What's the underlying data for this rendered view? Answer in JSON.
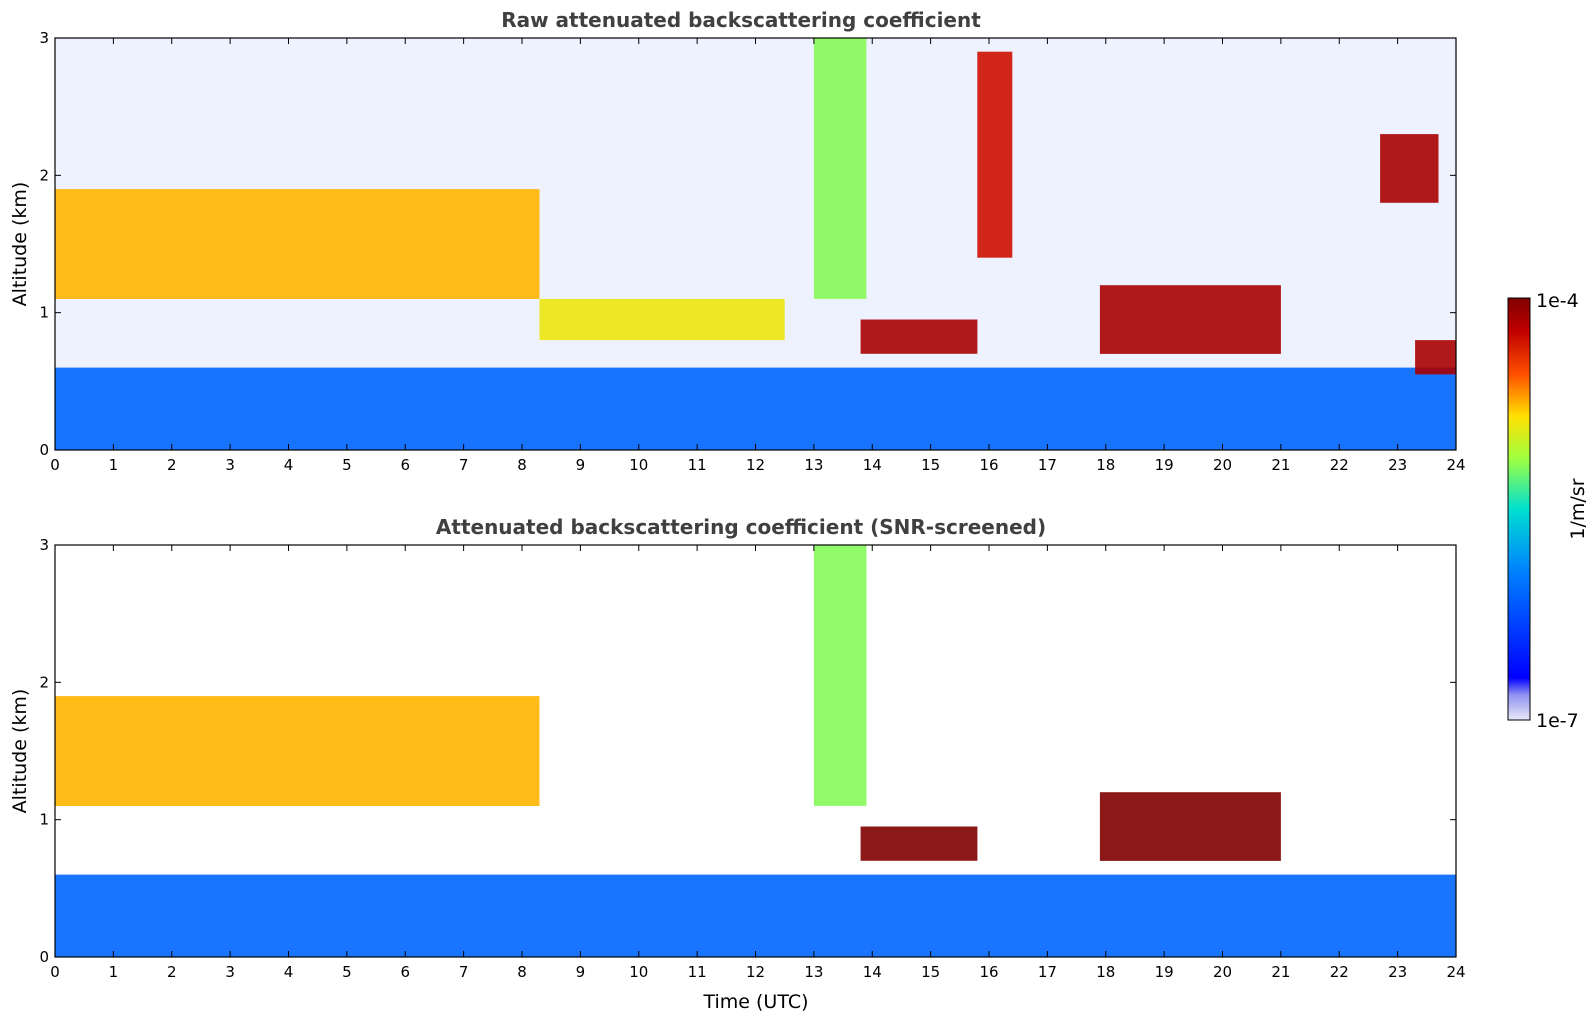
{
  "chart_data": [
    {
      "type": "heatmap",
      "title": "Raw attenuated backscattering coefficient",
      "xlabel": "",
      "ylabel": "Altitude (km)",
      "xlim": [
        0,
        24
      ],
      "ylim": [
        0,
        3
      ],
      "x_ticks": [
        "0",
        "1",
        "2",
        "3",
        "4",
        "5",
        "6",
        "7",
        "8",
        "9",
        "10",
        "11",
        "12",
        "13",
        "14",
        "15",
        "16",
        "17",
        "18",
        "19",
        "20",
        "21",
        "22",
        "23",
        "24"
      ],
      "y_ticks": [
        "0",
        "1",
        "2",
        "3"
      ],
      "features": [
        {
          "t_start": 0,
          "t_end": 24,
          "alt_bottom": 0,
          "alt_top": 0.6,
          "level": 0.3
        },
        {
          "t_start": 0,
          "t_end": 8.3,
          "alt_bottom": 1.1,
          "alt_top": 1.9,
          "level": 0.75
        },
        {
          "t_start": 8.3,
          "t_end": 12.5,
          "alt_bottom": 0.8,
          "alt_top": 1.1,
          "level": 0.7
        },
        {
          "t_start": 13,
          "t_end": 13.9,
          "alt_bottom": 1.1,
          "alt_top": 3.0,
          "level": 0.6
        },
        {
          "t_start": 13.8,
          "t_end": 15.8,
          "alt_bottom": 0.7,
          "alt_top": 0.95,
          "level": 0.95
        },
        {
          "t_start": 15.8,
          "t_end": 16.4,
          "alt_bottom": 1.4,
          "alt_top": 2.9,
          "level": 0.9
        },
        {
          "t_start": 17.9,
          "t_end": 21.0,
          "alt_bottom": 0.7,
          "alt_top": 1.2,
          "level": 0.95
        },
        {
          "t_start": 22.7,
          "t_end": 23.7,
          "alt_bottom": 1.8,
          "alt_top": 2.3,
          "level": 0.95
        },
        {
          "t_start": 23.3,
          "t_end": 24,
          "alt_bottom": 0.55,
          "alt_top": 0.8,
          "level": 0.95
        }
      ]
    },
    {
      "type": "heatmap",
      "title": "Attenuated backscattering coefficient (SNR-screened)",
      "xlabel": "Time (UTC)",
      "ylabel": "Altitude (km)",
      "xlim": [
        0,
        24
      ],
      "ylim": [
        0,
        3
      ],
      "x_ticks": [
        "0",
        "1",
        "2",
        "3",
        "4",
        "5",
        "6",
        "7",
        "8",
        "9",
        "10",
        "11",
        "12",
        "13",
        "14",
        "15",
        "16",
        "17",
        "18",
        "19",
        "20",
        "21",
        "22",
        "23",
        "24"
      ],
      "y_ticks": [
        "0",
        "1",
        "2",
        "3"
      ],
      "features": [
        {
          "t_start": 0,
          "t_end": 24,
          "alt_bottom": 0,
          "alt_top": 0.6,
          "level": 0.3
        },
        {
          "t_start": 0,
          "t_end": 8.3,
          "alt_bottom": 1.1,
          "alt_top": 1.9,
          "level": 0.75
        },
        {
          "t_start": 13,
          "t_end": 13.9,
          "alt_bottom": 1.1,
          "alt_top": 3.0,
          "level": 0.6
        },
        {
          "t_start": 13.8,
          "t_end": 15.8,
          "alt_bottom": 0.7,
          "alt_top": 0.95,
          "level": 1.0
        },
        {
          "t_start": 17.9,
          "t_end": 21.0,
          "alt_bottom": 0.7,
          "alt_top": 1.2,
          "level": 1.0
        }
      ]
    }
  ],
  "colorbar": {
    "label": "1/m/sr",
    "max_label": "1e-4",
    "min_label": "1e-7",
    "colors": [
      "#e8e8f8",
      "#0000ff",
      "#00a0ff",
      "#00e0c0",
      "#c0ff30",
      "#ffe000",
      "#ff6000",
      "#c00000",
      "#800000"
    ]
  }
}
